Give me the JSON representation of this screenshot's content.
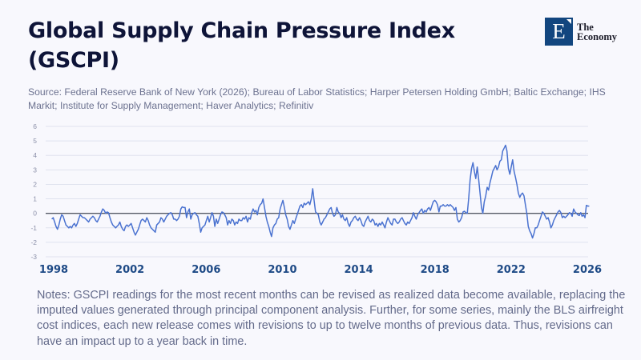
{
  "header": {
    "title": "Global Supply Chain Pressure Index (GSCPI)",
    "source": "Source:  Federal Reserve Bank of New York (2026); Bureau of Labor Statistics; Harper Petersen Holding GmbH; Baltic Exchange; IHS Markit; Institute for Supply Management; Haver Analytics; Refinitiv"
  },
  "logo": {
    "letter": "E",
    "line1": "The",
    "line2": "Economy",
    "color": "#12467f"
  },
  "notes": "Notes: GSCPI readings for the most recent months can be revised as realized data become available, replacing the imputed values generated through principal component analysis. Further, for some series, mainly the BLS airfreight cost indices, each new release comes with revisions to up to twelve months of previous data. Thus, revisions can have an impact up to a year back in time.",
  "chart_data": {
    "type": "line",
    "title": "Global Supply Chain Pressure Index (GSCPI)",
    "xlabel": "",
    "ylabel": "",
    "xlim": [
      1997.9,
      2026.1
    ],
    "ylim": [
      -3,
      6
    ],
    "yticks": [
      6,
      5,
      4,
      3,
      2,
      1,
      0,
      -1,
      -2,
      -3
    ],
    "xticks": [
      1998,
      2002,
      2006,
      2010,
      2014,
      2018,
      2022,
      2026
    ],
    "grid": true,
    "reference_line": 0,
    "line_color": "#4a72d0",
    "series": [
      {
        "name": "GSCPI",
        "x_start": 1997.9,
        "x_step": 0.0833,
        "values": [
          -0.4,
          -0.3,
          -0.6,
          -0.9,
          -1.1,
          -0.8,
          -0.4,
          -0.1,
          -0.2,
          -0.5,
          -0.8,
          -0.9,
          -1.0,
          -0.9,
          -1.0,
          -0.8,
          -0.7,
          -0.9,
          -0.7,
          -0.4,
          -0.1,
          -0.2,
          -0.3,
          -0.3,
          -0.4,
          -0.5,
          -0.6,
          -0.4,
          -0.3,
          -0.2,
          -0.3,
          -0.5,
          -0.6,
          -0.4,
          -0.2,
          0.1,
          0.3,
          0.2,
          0.0,
          0.1,
          0.05,
          -0.3,
          -0.6,
          -0.8,
          -0.9,
          -1.0,
          -0.9,
          -0.8,
          -0.6,
          -0.9,
          -1.1,
          -1.2,
          -0.9,
          -0.8,
          -0.9,
          -0.8,
          -0.7,
          -1.0,
          -1.3,
          -1.5,
          -1.3,
          -1.1,
          -0.8,
          -0.5,
          -0.4,
          -0.5,
          -0.6,
          -0.3,
          -0.5,
          -0.8,
          -1.0,
          -1.1,
          -1.2,
          -1.3,
          -0.8,
          -0.7,
          -0.6,
          -0.3,
          -0.4,
          -0.6,
          -0.4,
          -0.2,
          -0.1,
          0.0,
          0.05,
          -0.1,
          -0.4,
          -0.4,
          -0.5,
          -0.4,
          -0.2,
          0.3,
          0.45,
          0.4,
          0.4,
          -0.3,
          0.1,
          0.3,
          -0.4,
          -0.1,
          0.0,
          0.05,
          -0.1,
          -0.2,
          -0.7,
          -1.3,
          -1.0,
          -0.9,
          -0.8,
          -0.5,
          -0.2,
          -0.6,
          -0.3,
          0.05,
          -0.2,
          -0.9,
          -0.4,
          -0.7,
          -0.4,
          -0.1,
          0.1,
          0.05,
          -0.1,
          -0.3,
          -0.8,
          -0.5,
          -0.7,
          -0.4,
          -0.5,
          -0.8,
          -0.6,
          -0.7,
          -0.4,
          -0.5,
          -0.5,
          -0.3,
          -0.4,
          -0.2,
          -0.6,
          -0.3,
          -0.4,
          0.05,
          0.3,
          0.1,
          0.2,
          -0.1,
          0.4,
          0.6,
          0.7,
          1.0,
          0.4,
          -0.2,
          -0.6,
          -0.9,
          -1.3,
          -1.6,
          -1.0,
          -0.8,
          -0.7,
          -0.4,
          -0.3,
          0.3,
          0.6,
          0.9,
          0.4,
          -0.1,
          -0.4,
          -0.9,
          -1.1,
          -0.8,
          -0.5,
          -0.7,
          -0.4,
          -0.1,
          0.2,
          0.5,
          0.6,
          0.4,
          0.7,
          0.6,
          0.7,
          0.8,
          0.6,
          1.0,
          1.7,
          0.9,
          0.1,
          0.0,
          -0.1,
          -0.6,
          -0.8,
          -0.6,
          -0.4,
          -0.3,
          -0.1,
          0.1,
          0.3,
          0.4,
          0.0,
          -0.2,
          -0.1,
          0.4,
          0.1,
          0.0,
          -0.3,
          -0.1,
          -0.4,
          -0.5,
          -0.3,
          -0.7,
          -0.9,
          -0.6,
          -0.5,
          -0.3,
          -0.2,
          -0.4,
          -0.5,
          -0.3,
          -0.5,
          -0.8,
          -0.9,
          -0.6,
          -0.4,
          -0.2,
          -0.5,
          -0.6,
          -0.4,
          -0.5,
          -0.8,
          -0.7,
          -0.9,
          -0.7,
          -0.8,
          -0.6,
          -0.8,
          -1.0,
          -0.6,
          -0.3,
          -0.5,
          -0.7,
          -0.8,
          -0.4,
          -0.4,
          -0.6,
          -0.7,
          -0.6,
          -0.4,
          -0.3,
          -0.5,
          -0.7,
          -0.8,
          -0.6,
          -0.7,
          -0.5,
          -0.3,
          0.05,
          -0.2,
          -0.4,
          -0.1,
          0.05,
          0.2,
          0.3,
          0.0,
          0.2,
          0.1,
          0.3,
          0.4,
          0.2,
          0.5,
          0.8,
          0.9,
          0.8,
          0.6,
          0.1,
          0.5,
          0.5,
          0.6,
          0.5,
          0.5,
          0.6,
          0.5,
          0.6,
          0.5,
          0.4,
          0.2,
          0.4,
          -0.4,
          -0.6,
          -0.5,
          -0.3,
          0.1,
          0.15,
          0.05,
          0.0,
          1.0,
          2.3,
          3.1,
          3.5,
          2.9,
          2.4,
          3.2,
          2.4,
          1.4,
          0.4,
          0.0,
          0.8,
          1.2,
          1.8,
          1.6,
          2.1,
          2.5,
          2.9,
          3.1,
          3.3,
          3.0,
          3.2,
          3.6,
          3.7,
          4.3,
          4.5,
          4.7,
          4.3,
          3.1,
          2.7,
          3.2,
          3.7,
          2.9,
          2.5,
          2.0,
          1.4,
          1.1,
          1.3,
          1.4,
          1.2,
          0.6,
          0.0,
          -0.9,
          -1.2,
          -1.4,
          -1.7,
          -1.4,
          -1.0,
          -1.0,
          -0.8,
          -0.5,
          -0.2,
          0.1,
          0.0,
          -0.2,
          -0.4,
          -0.3,
          -0.6,
          -1.0,
          -0.8,
          -0.5,
          -0.3,
          -0.1,
          0.1,
          0.2,
          0.05,
          -0.3,
          -0.2,
          -0.3,
          -0.2,
          -0.1,
          0.05,
          0.0,
          -0.2,
          0.3,
          0.1,
          0.0,
          -0.1,
          -0.15,
          0.05,
          -0.2,
          -0.1,
          -0.3,
          0.55,
          0.5,
          0.5
        ]
      }
    ]
  }
}
